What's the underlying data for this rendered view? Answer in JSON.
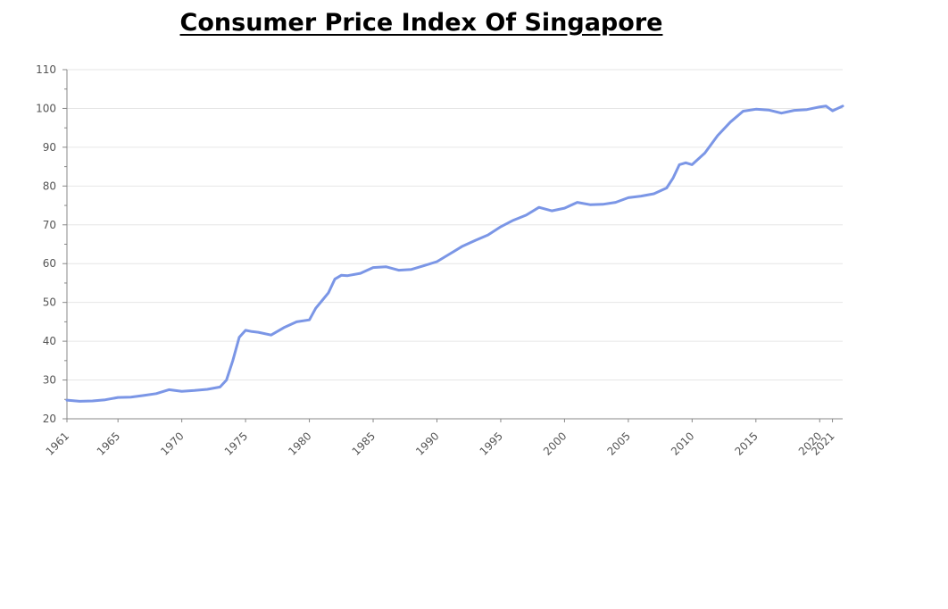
{
  "chart_data": {
    "type": "line",
    "title": "Consumer Price Index Of Singapore",
    "xlabel": "",
    "ylabel": "",
    "xlim": [
      1961,
      2021.8
    ],
    "ylim": [
      20,
      110
    ],
    "y_ticks": [
      20,
      30,
      40,
      50,
      60,
      70,
      80,
      90,
      100,
      110
    ],
    "x_ticks": [
      1961,
      1965,
      1970,
      1975,
      1980,
      1985,
      1990,
      1995,
      2000,
      2005,
      2010,
      2015,
      2020,
      2021
    ],
    "grid": true,
    "legend": "none",
    "colors": {
      "line": "#7b96e6",
      "grid": "#e6e6e6",
      "axis": "#888888",
      "title": "#000000"
    },
    "series": [
      {
        "x": [
          1961,
          1962,
          1963,
          1964,
          1965,
          1966,
          1967,
          1968,
          1969,
          1970,
          1971,
          1972,
          1973,
          1973.5,
          1974,
          1974.5,
          1975,
          1975.5,
          1976,
          1977,
          1978,
          1979,
          1980,
          1980.5,
          1981,
          1981.5,
          1982,
          1982.5,
          1983,
          1984,
          1985,
          1986,
          1987,
          1988,
          1989,
          1990,
          1991,
          1992,
          1993,
          1994,
          1995,
          1996,
          1997,
          1998,
          1999,
          2000,
          2001,
          2002,
          2003,
          2004,
          2005,
          2006,
          2007,
          2008,
          2008.5,
          2009,
          2009.5,
          2010,
          2011,
          2012,
          2013,
          2014,
          2015,
          2016,
          2017,
          2018,
          2019,
          2020,
          2020.5,
          2021,
          2021.8
        ],
        "y": [
          24.8,
          24.5,
          24.6,
          24.9,
          25.5,
          25.6,
          26,
          26.5,
          27.5,
          27.1,
          27.3,
          27.6,
          28.2,
          30,
          35,
          41,
          42.8,
          42.5,
          42.3,
          41.6,
          43.5,
          45,
          45.5,
          48.5,
          50.5,
          52.5,
          56,
          57,
          56.9,
          57.5,
          59,
          59.2,
          58.3,
          58.5,
          59.5,
          60.5,
          62.5,
          64.5,
          66,
          67.4,
          69.5,
          71.2,
          72.5,
          74.5,
          73.6,
          74.3,
          75.8,
          75.2,
          75.3,
          75.8,
          77,
          77.4,
          78,
          79.5,
          82,
          85.5,
          86,
          85.5,
          88.5,
          93,
          96.5,
          99.3,
          99.8,
          99.6,
          98.8,
          99.5,
          99.7,
          100.4,
          100.6,
          99.4,
          100.6
        ]
      }
    ]
  }
}
